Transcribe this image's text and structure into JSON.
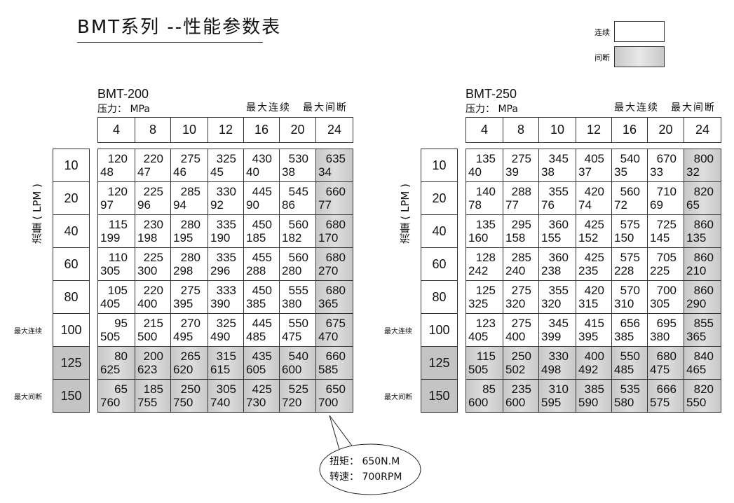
{
  "title": "BMT系列 --性能参数表",
  "legend": {
    "continuous": "连续",
    "intermittent": "间断"
  },
  "colors": {
    "intermittent_fill": "#c4c4c4",
    "continuous_fill": "#ffffff"
  },
  "flow_axis_label": "流量 ( LPM )",
  "max_continuous_label": "最大连续",
  "max_intermittent_label": "最大间断",
  "tables": [
    {
      "model": "BMT-200",
      "pressure_label": "压力： MPa",
      "pressures": [
        "4",
        "8",
        "10",
        "12",
        "16",
        "20",
        "24"
      ],
      "flows": [
        "10",
        "20",
        "40",
        "60",
        "80",
        "100",
        "125",
        "150"
      ],
      "rows": [
        [
          [
            "120",
            "48"
          ],
          [
            "220",
            "47"
          ],
          [
            "275",
            "46"
          ],
          [
            "325",
            "45"
          ],
          [
            "430",
            "40"
          ],
          [
            "530",
            "38"
          ],
          [
            "635",
            "34"
          ]
        ],
        [
          [
            "120",
            "97"
          ],
          [
            "225",
            "96"
          ],
          [
            "285",
            "94"
          ],
          [
            "330",
            "92"
          ],
          [
            "445",
            "90"
          ],
          [
            "545",
            "86"
          ],
          [
            "660",
            "77"
          ]
        ],
        [
          [
            "115",
            "199"
          ],
          [
            "230",
            "198"
          ],
          [
            "280",
            "195"
          ],
          [
            "335",
            "190"
          ],
          [
            "450",
            "185"
          ],
          [
            "560",
            "182"
          ],
          [
            "680",
            "170"
          ]
        ],
        [
          [
            "110",
            "305"
          ],
          [
            "225",
            "300"
          ],
          [
            "280",
            "298"
          ],
          [
            "335",
            "296"
          ],
          [
            "455",
            "288"
          ],
          [
            "560",
            "280"
          ],
          [
            "680",
            "270"
          ]
        ],
        [
          [
            "105",
            "405"
          ],
          [
            "220",
            "400"
          ],
          [
            "275",
            "395"
          ],
          [
            "333",
            "390"
          ],
          [
            "450",
            "385"
          ],
          [
            "555",
            "380"
          ],
          [
            "680",
            "365"
          ]
        ],
        [
          [
            "95",
            "505"
          ],
          [
            "215",
            "500"
          ],
          [
            "270",
            "495"
          ],
          [
            "325",
            "490"
          ],
          [
            "445",
            "485"
          ],
          [
            "550",
            "475"
          ],
          [
            "675",
            "470"
          ]
        ],
        [
          [
            "80",
            "625"
          ],
          [
            "200",
            "623"
          ],
          [
            "265",
            "620"
          ],
          [
            "315",
            "615"
          ],
          [
            "435",
            "605"
          ],
          [
            "540",
            "600"
          ],
          [
            "660",
            "585"
          ]
        ],
        [
          [
            "65",
            "760"
          ],
          [
            "185",
            "755"
          ],
          [
            "250",
            "750"
          ],
          [
            "305",
            "740"
          ],
          [
            "425",
            "730"
          ],
          [
            "525",
            "720"
          ],
          [
            "650",
            "700"
          ]
        ]
      ]
    },
    {
      "model": "BMT-250",
      "pressure_label": "压力： MPa",
      "pressures": [
        "4",
        "8",
        "10",
        "12",
        "16",
        "20",
        "24"
      ],
      "flows": [
        "10",
        "20",
        "40",
        "60",
        "80",
        "100",
        "125",
        "150"
      ],
      "rows": [
        [
          [
            "135",
            "40"
          ],
          [
            "275",
            "39"
          ],
          [
            "345",
            "38"
          ],
          [
            "405",
            "37"
          ],
          [
            "540",
            "35"
          ],
          [
            "670",
            "33"
          ],
          [
            "800",
            "32"
          ]
        ],
        [
          [
            "140",
            "78"
          ],
          [
            "288",
            "77"
          ],
          [
            "355",
            "76"
          ],
          [
            "420",
            "74"
          ],
          [
            "560",
            "72"
          ],
          [
            "710",
            "69"
          ],
          [
            "820",
            "65"
          ]
        ],
        [
          [
            "135",
            "160"
          ],
          [
            "295",
            "158"
          ],
          [
            "360",
            "155"
          ],
          [
            "425",
            "152"
          ],
          [
            "575",
            "150"
          ],
          [
            "725",
            "145"
          ],
          [
            "860",
            "135"
          ]
        ],
        [
          [
            "128",
            "242"
          ],
          [
            "285",
            "240"
          ],
          [
            "360",
            "238"
          ],
          [
            "425",
            "235"
          ],
          [
            "575",
            "228"
          ],
          [
            "705",
            "225"
          ],
          [
            "860",
            "210"
          ]
        ],
        [
          [
            "125",
            "325"
          ],
          [
            "275",
            "320"
          ],
          [
            "355",
            "320"
          ],
          [
            "420",
            "315"
          ],
          [
            "570",
            "310"
          ],
          [
            "700",
            "305"
          ],
          [
            "860",
            "290"
          ]
        ],
        [
          [
            "123",
            "405"
          ],
          [
            "275",
            "400"
          ],
          [
            "345",
            "399"
          ],
          [
            "415",
            "395"
          ],
          [
            "656",
            "385"
          ],
          [
            "695",
            "380"
          ],
          [
            "855",
            "365"
          ]
        ],
        [
          [
            "115",
            "505"
          ],
          [
            "250",
            "502"
          ],
          [
            "330",
            "498"
          ],
          [
            "400",
            "492"
          ],
          [
            "550",
            "485"
          ],
          [
            "680",
            "475"
          ],
          [
            "840",
            "465"
          ]
        ],
        [
          [
            "85",
            "600"
          ],
          [
            "235",
            "600"
          ],
          [
            "310",
            "595"
          ],
          [
            "385",
            "590"
          ],
          [
            "535",
            "580"
          ],
          [
            "666",
            "575"
          ],
          [
            "820",
            "550"
          ]
        ]
      ]
    }
  ],
  "callout": {
    "torque": "扭矩： 650N.M",
    "speed": "转速： 700RPM"
  }
}
